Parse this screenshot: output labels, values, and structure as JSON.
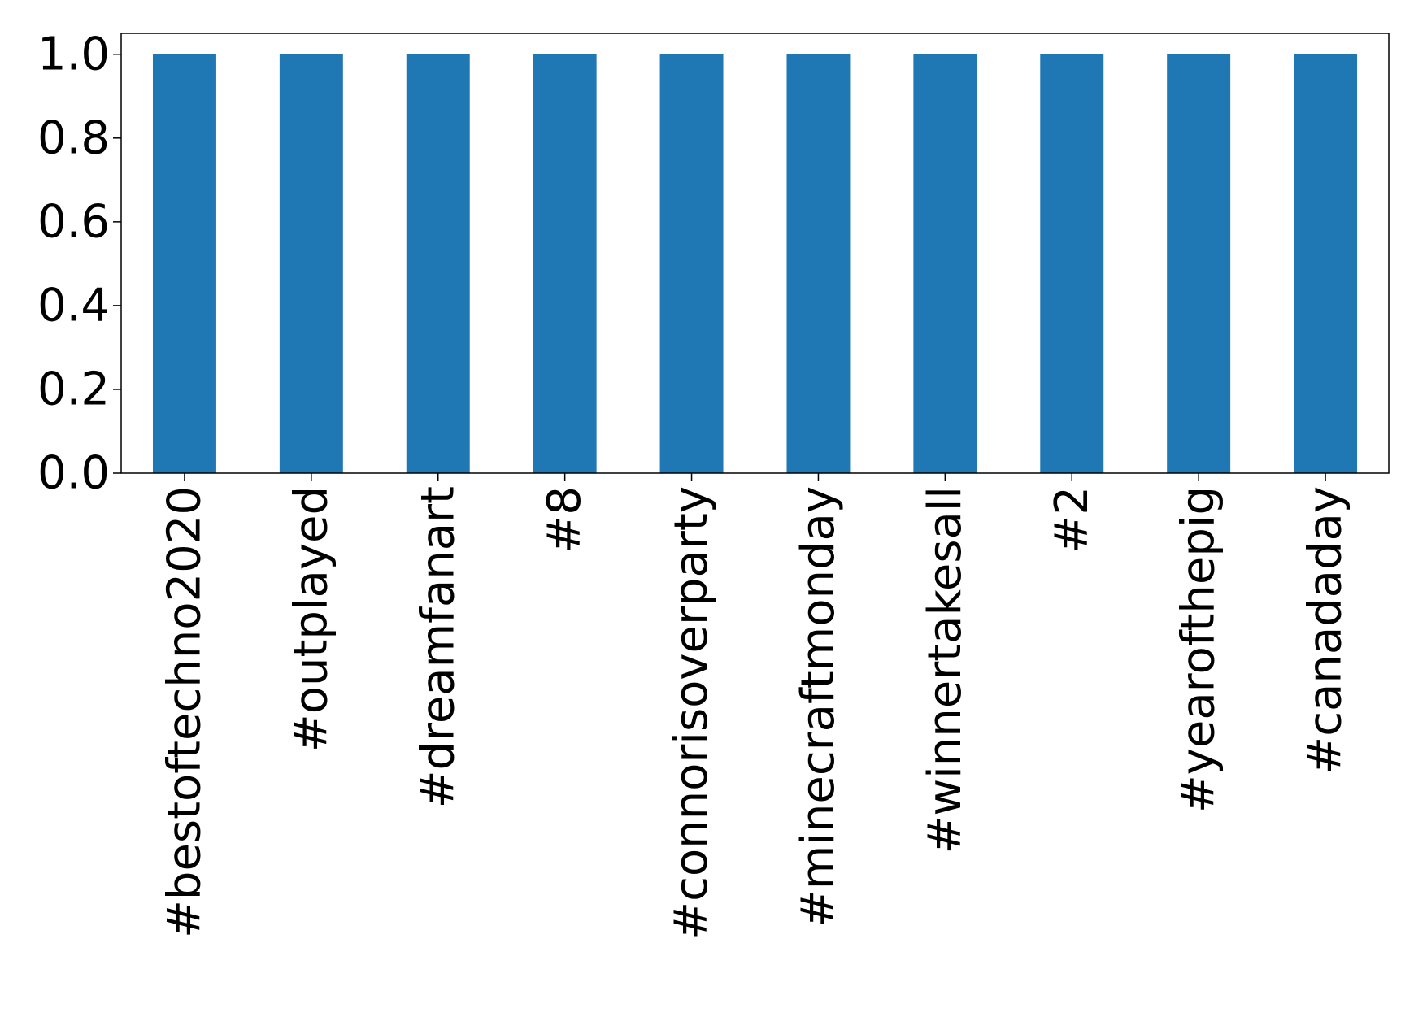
{
  "chart_data": {
    "type": "bar",
    "categories": [
      "#bestoftechno2020",
      "#outplayed",
      "#dreamfanart",
      "#8",
      "#connorisoverparty",
      "#minecraftmonday",
      "#winnertakesall",
      "#2",
      "#yearofthepig",
      "#canadaday"
    ],
    "values": [
      1,
      1,
      1,
      1,
      1,
      1,
      1,
      1,
      1,
      1
    ],
    "color": "#1f77b4",
    "ylim": [
      0,
      1.05
    ],
    "yticks": [
      {
        "value": 0,
        "label": "0.0"
      },
      0.2,
      0.4,
      0.6,
      0.8,
      {
        "value": 1,
        "label": "1.0"
      }
    ],
    "grid": false
  }
}
